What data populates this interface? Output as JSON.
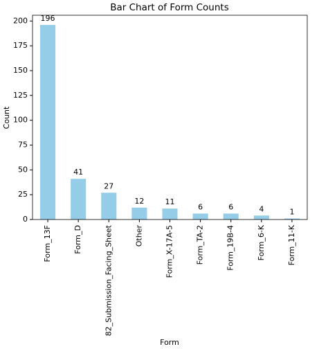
{
  "chart_data": {
    "type": "bar",
    "title": "Bar Chart of Form Counts",
    "x_label": "Form",
    "y_label": "Count",
    "categories": [
      "Form_13F",
      "Form_D",
      "82_Submission_Facing_Sheet",
      "Other",
      "Form_X-17A-5",
      "Form_TA-2",
      "Form_19B-4",
      "Form_6-K",
      "Form_11-K"
    ],
    "values": [
      196,
      41,
      27,
      12,
      11,
      6,
      6,
      4,
      1
    ],
    "color": "#95cde8",
    "ylim": [
      0,
      205.8
    ],
    "yticks": [
      0,
      25,
      50,
      75,
      100,
      125,
      150,
      175,
      200
    ],
    "grid": false
  }
}
